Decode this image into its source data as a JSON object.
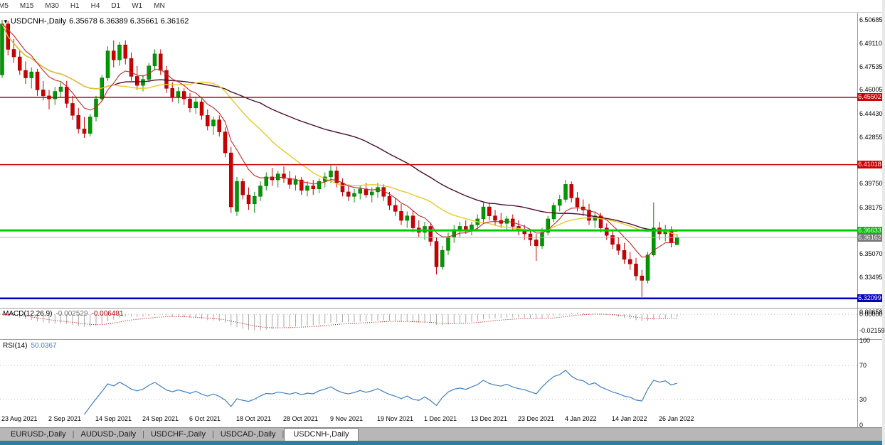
{
  "toolbar": {
    "timeframes": [
      "M5",
      "M15",
      "M30",
      "H1",
      "H4",
      "D1",
      "W1",
      "MN"
    ]
  },
  "quote_bar": {
    "symbol": "USDCNH-,Daily",
    "ohlc_text": "6.35678 6.36389 6.35661 6.36162",
    "open": "6.35678",
    "high": "6.36389",
    "low": "6.35661",
    "close": "6.36162"
  },
  "price_scale": {
    "labels": [
      {
        "text": "6.50685",
        "price": 6.50685
      },
      {
        "text": "6.49110",
        "price": 6.4911
      },
      {
        "text": "6.47535",
        "price": 6.47535
      },
      {
        "text": "6.46005",
        "price": 6.46005
      },
      {
        "text": "6.44430",
        "price": 6.4443
      },
      {
        "text": "6.42855",
        "price": 6.42855
      },
      {
        "text": "6.39750",
        "price": 6.3975
      },
      {
        "text": "6.38175",
        "price": 6.38175
      },
      {
        "text": "6.35070",
        "price": 6.3507
      },
      {
        "text": "6.33495",
        "price": 6.33495
      }
    ],
    "badges": [
      {
        "name": "resistance-upper-badge",
        "text": "6.45502",
        "price": 6.45502,
        "bg": "#cc0000",
        "fg": "#ffffff"
      },
      {
        "name": "resistance-lower-badge",
        "text": "6.41018",
        "price": 6.41018,
        "bg": "#cc0000",
        "fg": "#ffffff"
      },
      {
        "name": "alert-level-badge",
        "text": "6.36633",
        "price": 6.36633,
        "bg": "#00bb00",
        "fg": "#ffffff"
      },
      {
        "name": "current-price-badge",
        "text": "6.36162",
        "price": 6.36162,
        "bg": "#7a7a7a",
        "fg": "#ffffff"
      },
      {
        "name": "support-level-badge",
        "text": "6.32099",
        "price": 6.32099,
        "bg": "#0000bb",
        "fg": "#ffffff"
      }
    ]
  },
  "macd_panel": {
    "title": "MACD(12,26,9)",
    "main_value": "-0.002529",
    "signal_value": "-0.006481",
    "scale_labels": [
      {
        "text": "0.00658",
        "value": 0.00658
      },
      {
        "text": "0.00000",
        "value": 0
      },
      {
        "text": "-0.02159",
        "value": -0.02159
      }
    ]
  },
  "rsi_panel": {
    "title": "RSI(14)",
    "value": "50.0367",
    "scale_labels": [
      {
        "text": "100",
        "value": 100
      },
      {
        "text": "70",
        "value": 70
      },
      {
        "text": "30",
        "value": 30
      },
      {
        "text": "0",
        "value": 0
      }
    ],
    "levels": [
      70,
      30
    ]
  },
  "tabs": {
    "items": [
      "EURUSD-,Daily",
      "AUDUSD-,Daily",
      "USDCHF-,Daily",
      "USDCAD-,Daily",
      "USDCNH-,Daily"
    ],
    "active_index": 4
  },
  "colors": {
    "candle_up": "#009900",
    "candle_up_edge": "#006600",
    "candle_down": "#cc0000",
    "candle_down_edge": "#8e0000",
    "ma_fast": "#c62828",
    "ma_mid": "#e8c92a",
    "ma_slow": "#4a0c2e",
    "macd_hist": "#a8a8a8",
    "macd_signal": "#cc0000",
    "rsi_line": "#3f7fc1",
    "level_dotted": "#bcbcbc",
    "panel_separator": "#9a9a9a"
  },
  "chart_data": {
    "type": "candlestick",
    "symbol": "USDCNH-,Daily",
    "timeframe": "Daily",
    "y_range": [
      6.3152,
      6.5095
    ],
    "x_label_every": 8,
    "x_labels": [
      "23 Aug 2021",
      "2 Sep 2021",
      "14 Sep 2021",
      "24 Sep 2021",
      "6 Oct 2021",
      "18 Oct 2021",
      "28 Oct 2021",
      "9 Nov 2021",
      "19 Nov 2021",
      "1 Dec 2021",
      "13 Dec 2021",
      "23 Dec 2021",
      "4 Jan 2022",
      "14 Jan 2022",
      "26 Jan 2022"
    ],
    "h_lines": [
      {
        "name": "resistance-upper-line",
        "price": 6.45502,
        "color": "#cc0000",
        "width": 1.5
      },
      {
        "name": "resistance-lower-line",
        "price": 6.41018,
        "color": "#cc0000",
        "width": 1.5
      },
      {
        "name": "alert-level-line",
        "price": 6.36633,
        "color": "#00cc00",
        "width": 3
      },
      {
        "name": "current-price-line",
        "price": 6.36162,
        "color": "#b4b4b4",
        "width": 1
      },
      {
        "name": "support-level-line",
        "price": 6.32099,
        "color": "#0000bb",
        "width": 2.5
      }
    ],
    "overlays": [
      {
        "name": "fast-ma",
        "type": "ema",
        "period": 8
      },
      {
        "name": "mid-ma",
        "type": "sma",
        "period": 20
      },
      {
        "name": "slow-ma",
        "type": "sma",
        "period": 45
      }
    ],
    "indicators": [
      {
        "type": "macd",
        "params": [
          12,
          26,
          9
        ],
        "main": -0.002529,
        "signal": -0.006481,
        "range": [
          -0.0315,
          0.0075
        ]
      },
      {
        "type": "rsi",
        "params": [
          14
        ],
        "value": 50.0367,
        "range": [
          0,
          100
        ],
        "levels": [
          70,
          30
        ]
      }
    ],
    "candles": [
      [
        6.47,
        6.5068,
        6.468,
        6.504
      ],
      [
        6.504,
        6.506,
        6.483,
        6.487
      ],
      [
        6.487,
        6.494,
        6.478,
        6.482
      ],
      [
        6.482,
        6.486,
        6.47,
        6.473
      ],
      [
        6.473,
        6.479,
        6.464,
        6.468
      ],
      [
        6.468,
        6.475,
        6.461,
        6.472
      ],
      [
        6.472,
        6.474,
        6.456,
        6.46
      ],
      [
        6.46,
        6.466,
        6.453,
        6.456
      ],
      [
        6.456,
        6.46,
        6.447,
        6.454
      ],
      [
        6.454,
        6.462,
        6.45,
        6.459
      ],
      [
        6.459,
        6.465,
        6.455,
        6.462
      ],
      [
        6.462,
        6.466,
        6.448,
        6.451
      ],
      [
        6.451,
        6.456,
        6.44,
        6.443
      ],
      [
        6.443,
        6.448,
        6.431,
        6.434
      ],
      [
        6.434,
        6.442,
        6.428,
        6.431
      ],
      [
        6.431,
        6.444,
        6.429,
        6.442
      ],
      [
        6.442,
        6.456,
        6.439,
        6.454
      ],
      [
        6.454,
        6.47,
        6.452,
        6.468
      ],
      [
        6.468,
        6.489,
        6.466,
        6.486
      ],
      [
        6.486,
        6.493,
        6.475,
        6.48
      ],
      [
        6.48,
        6.492,
        6.476,
        6.49
      ],
      [
        6.49,
        6.493,
        6.477,
        6.481
      ],
      [
        6.481,
        6.485,
        6.466,
        6.469
      ],
      [
        6.469,
        6.476,
        6.46,
        6.463
      ],
      [
        6.463,
        6.47,
        6.459,
        6.467
      ],
      [
        6.467,
        6.478,
        6.465,
        6.476
      ],
      [
        6.476,
        6.487,
        6.473,
        6.484
      ],
      [
        6.484,
        6.487,
        6.47,
        6.473
      ],
      [
        6.473,
        6.476,
        6.458,
        6.461
      ],
      [
        6.461,
        6.465,
        6.452,
        6.455
      ],
      [
        6.455,
        6.462,
        6.451,
        6.459
      ],
      [
        6.459,
        6.461,
        6.45,
        6.454
      ],
      [
        6.454,
        6.458,
        6.445,
        6.448
      ],
      [
        6.448,
        6.455,
        6.444,
        6.452
      ],
      [
        6.452,
        6.454,
        6.44,
        6.443
      ],
      [
        6.443,
        6.447,
        6.433,
        6.436
      ],
      [
        6.436,
        6.442,
        6.43,
        6.44
      ],
      [
        6.44,
        6.443,
        6.429,
        6.432
      ],
      [
        6.432,
        6.435,
        6.415,
        6.418
      ],
      [
        6.418,
        6.422,
        6.378,
        6.382
      ],
      [
        6.379,
        6.402,
        6.376,
        6.399
      ],
      [
        6.399,
        6.401,
        6.387,
        6.39
      ],
      [
        6.39,
        6.395,
        6.38,
        6.384
      ],
      [
        6.384,
        6.392,
        6.378,
        6.389
      ],
      [
        6.389,
        6.399,
        6.386,
        6.396
      ],
      [
        6.396,
        6.405,
        6.393,
        6.402
      ],
      [
        6.402,
        6.408,
        6.396,
        6.4
      ],
      [
        6.4,
        6.406,
        6.395,
        6.404
      ],
      [
        6.404,
        6.409,
        6.398,
        6.401
      ],
      [
        6.401,
        6.406,
        6.394,
        6.397
      ],
      [
        6.397,
        6.403,
        6.393,
        6.4
      ],
      [
        6.4,
        6.402,
        6.39,
        6.393
      ],
      [
        6.393,
        6.399,
        6.389,
        6.396
      ],
      [
        6.396,
        6.4,
        6.39,
        6.394
      ],
      [
        6.394,
        6.401,
        6.391,
        6.399
      ],
      [
        6.399,
        6.405,
        6.395,
        6.402
      ],
      [
        6.402,
        6.41,
        6.398,
        6.406
      ],
      [
        6.406,
        6.409,
        6.395,
        6.398
      ],
      [
        6.398,
        6.401,
        6.389,
        6.392
      ],
      [
        6.392,
        6.397,
        6.386,
        6.389
      ],
      [
        6.389,
        6.394,
        6.385,
        6.391
      ],
      [
        6.391,
        6.396,
        6.387,
        6.394
      ],
      [
        6.394,
        6.398,
        6.388,
        6.39
      ],
      [
        6.39,
        6.395,
        6.385,
        6.392
      ],
      [
        6.392,
        6.398,
        6.388,
        6.395
      ],
      [
        6.395,
        6.397,
        6.386,
        6.389
      ],
      [
        6.389,
        6.392,
        6.38,
        6.383
      ],
      [
        6.383,
        6.388,
        6.376,
        6.379
      ],
      [
        6.379,
        6.384,
        6.37,
        6.373
      ],
      [
        6.373,
        6.379,
        6.368,
        6.376
      ],
      [
        6.376,
        6.38,
        6.365,
        6.368
      ],
      [
        6.368,
        6.373,
        6.362,
        6.365
      ],
      [
        6.365,
        6.372,
        6.36,
        6.369
      ],
      [
        6.369,
        6.371,
        6.356,
        6.359
      ],
      [
        6.359,
        6.362,
        6.337,
        6.342
      ],
      [
        6.342,
        6.356,
        6.34,
        6.353
      ],
      [
        6.353,
        6.365,
        6.35,
        6.362
      ],
      [
        6.362,
        6.37,
        6.358,
        6.367
      ],
      [
        6.367,
        6.372,
        6.362,
        6.369
      ],
      [
        6.369,
        6.373,
        6.364,
        6.366
      ],
      [
        6.366,
        6.372,
        6.363,
        6.37
      ],
      [
        6.37,
        6.377,
        6.367,
        6.374
      ],
      [
        6.374,
        6.385,
        6.371,
        6.382
      ],
      [
        6.382,
        6.385,
        6.373,
        6.376
      ],
      [
        6.376,
        6.38,
        6.37,
        6.373
      ],
      [
        6.373,
        6.378,
        6.368,
        6.371
      ],
      [
        6.371,
        6.376,
        6.366,
        6.374
      ],
      [
        6.374,
        6.377,
        6.367,
        6.369
      ],
      [
        6.369,
        6.373,
        6.363,
        6.366
      ],
      [
        6.366,
        6.37,
        6.36,
        6.364
      ],
      [
        6.364,
        6.367,
        6.356,
        6.36
      ],
      [
        6.36,
        6.364,
        6.346,
        6.356
      ],
      [
        6.356,
        6.368,
        6.354,
        6.365
      ],
      [
        6.365,
        6.376,
        6.363,
        6.374
      ],
      [
        6.374,
        6.385,
        6.372,
        6.383
      ],
      [
        6.383,
        6.39,
        6.379,
        6.387
      ],
      [
        6.387,
        6.4,
        6.385,
        6.397
      ],
      [
        6.397,
        6.399,
        6.385,
        6.388
      ],
      [
        6.388,
        6.392,
        6.379,
        6.382
      ],
      [
        6.382,
        6.387,
        6.376,
        6.38
      ],
      [
        6.38,
        6.384,
        6.37,
        6.373
      ],
      [
        6.373,
        6.379,
        6.368,
        6.376
      ],
      [
        6.376,
        6.378,
        6.365,
        6.368
      ],
      [
        6.368,
        6.371,
        6.36,
        6.363
      ],
      [
        6.363,
        6.367,
        6.354,
        6.357
      ],
      [
        6.357,
        6.362,
        6.35,
        6.353
      ],
      [
        6.353,
        6.358,
        6.344,
        6.347
      ],
      [
        6.347,
        6.352,
        6.34,
        6.344
      ],
      [
        6.344,
        6.348,
        6.333,
        6.336
      ],
      [
        6.336,
        6.34,
        6.322,
        6.333
      ],
      [
        6.333,
        6.352,
        6.331,
        6.35
      ],
      [
        6.35,
        6.385,
        6.349,
        6.368
      ],
      [
        6.368,
        6.372,
        6.36,
        6.364
      ],
      [
        6.364,
        6.37,
        6.359,
        6.367
      ],
      [
        6.367,
        6.369,
        6.355,
        6.358
      ],
      [
        6.35678,
        6.36389,
        6.35661,
        6.36162
      ]
    ]
  }
}
